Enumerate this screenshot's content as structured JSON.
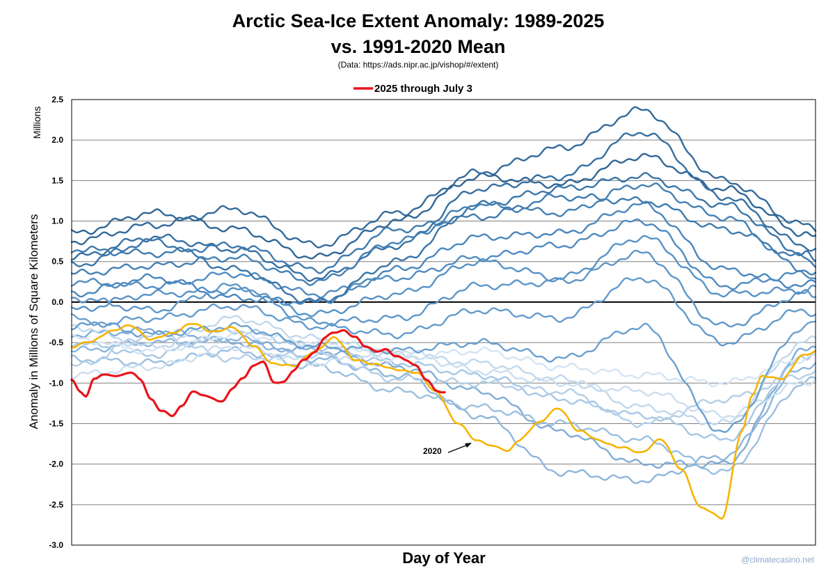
{
  "chart_data": {
    "type": "line",
    "title_line1": "Arctic Sea-Ice Extent Anomaly: 1989-2025",
    "title_line2": "vs. 1991-2020 Mean",
    "subtitle": "(Data: https://ads.nipr.ac.jp/vishop/#/extent)",
    "xlabel": "Day of Year",
    "ylabel": "Anomaly in Millions of Square Kilometers",
    "yunits": "Millions",
    "ylim": [
      -3.0,
      2.5
    ],
    "yticks": [
      2.5,
      2.0,
      1.5,
      1.0,
      0.5,
      0.0,
      -0.5,
      -1.0,
      -1.5,
      -2.0,
      -2.5,
      -3.0
    ],
    "ytick_labels": [
      "2.5",
      "2.0",
      "1.5",
      "1.0",
      "0.5",
      "0.0",
      "-0.5",
      "-1.0",
      "-1.5",
      "-2.0",
      "-2.5",
      "-3.0"
    ],
    "xlim": [
      1,
      366
    ],
    "grid": true,
    "legend": {
      "position": "top-center",
      "entries": [
        "2025 through July 3"
      ]
    },
    "annotations": [
      {
        "text": "2020",
        "x": 212,
        "y": -1.88
      }
    ],
    "highlight": [
      {
        "name": "2025 through July 3",
        "color": "#e8141b",
        "x": [
          1,
          5,
          8,
          12,
          16,
          20,
          25,
          30,
          35,
          40,
          45,
          50,
          55,
          60,
          65,
          70,
          75,
          80,
          85,
          90,
          95,
          100,
          105,
          110,
          115,
          120,
          125,
          130,
          135,
          140,
          145,
          150,
          155,
          160,
          165,
          170,
          175,
          180,
          184
        ],
        "y": [
          -0.95,
          -1.12,
          -1.17,
          -0.95,
          -0.88,
          -0.9,
          -0.92,
          -0.87,
          -0.95,
          -1.2,
          -1.35,
          -1.41,
          -1.28,
          -1.1,
          -1.15,
          -1.2,
          -1.22,
          -1.05,
          -0.95,
          -0.8,
          -0.72,
          -0.98,
          -1.0,
          -0.85,
          -0.7,
          -0.62,
          -0.45,
          -0.38,
          -0.35,
          -0.42,
          -0.55,
          -0.62,
          -0.58,
          -0.65,
          -0.72,
          -0.8,
          -0.95,
          -1.08,
          -1.12
        ]
      },
      {
        "name": "2020",
        "color": "#f5b400",
        "x": [
          1,
          10,
          20,
          30,
          40,
          50,
          60,
          70,
          80,
          90,
          100,
          110,
          120,
          130,
          140,
          150,
          160,
          170,
          180,
          190,
          200,
          210,
          215,
          220,
          230,
          240,
          250,
          260,
          270,
          280,
          290,
          300,
          310,
          320,
          330,
          335,
          340,
          350,
          360,
          366
        ],
        "y": [
          -0.55,
          -0.5,
          -0.35,
          -0.3,
          -0.45,
          -0.4,
          -0.25,
          -0.38,
          -0.3,
          -0.55,
          -0.75,
          -0.8,
          -0.6,
          -0.45,
          -0.7,
          -0.78,
          -0.82,
          -0.88,
          -1.1,
          -1.5,
          -1.7,
          -1.8,
          -1.85,
          -1.7,
          -1.5,
          -1.3,
          -1.6,
          -1.7,
          -1.8,
          -1.85,
          -1.7,
          -2.05,
          -2.55,
          -2.66,
          -1.6,
          -1.15,
          -0.9,
          -0.95,
          -0.65,
          -0.6
        ]
      }
    ],
    "series": [
      {
        "group": "dark",
        "color": "#2f6696",
        "x": [
          1,
          41,
          81,
          121,
          161,
          201,
          241,
          281,
          321,
          361,
          366
        ],
        "y": [
          0.85,
          1.1,
          0.9,
          0.55,
          1.0,
          1.55,
          1.45,
          1.8,
          1.4,
          0.85,
          0.8
        ]
      },
      {
        "group": "dark",
        "color": "#326a9b",
        "x": [
          1,
          41,
          81,
          121,
          161,
          201,
          241,
          281,
          321,
          361,
          366
        ],
        "y": [
          0.75,
          0.95,
          1.15,
          0.7,
          1.1,
          1.6,
          1.9,
          2.37,
          1.5,
          0.95,
          0.9
        ]
      },
      {
        "group": "dark",
        "color": "#3670a2",
        "x": [
          1,
          41,
          81,
          121,
          161,
          201,
          241,
          281,
          321,
          361,
          366
        ],
        "y": [
          0.55,
          0.8,
          0.65,
          0.3,
          0.7,
          1.4,
          1.55,
          2.1,
          1.3,
          0.7,
          0.65
        ]
      },
      {
        "group": "dark",
        "color": "#3a75a8",
        "x": [
          1,
          41,
          81,
          121,
          161,
          201,
          241,
          281,
          321,
          361,
          366
        ],
        "y": [
          0.45,
          0.75,
          0.4,
          0.0,
          0.5,
          1.2,
          1.4,
          1.55,
          1.2,
          0.6,
          0.5
        ]
      },
      {
        "group": "dark",
        "color": "#3e7aae",
        "x": [
          1,
          41,
          81,
          121,
          161,
          201,
          241,
          281,
          321,
          361,
          366
        ],
        "y": [
          0.65,
          0.6,
          0.7,
          0.4,
          0.9,
          1.05,
          1.3,
          1.25,
          0.9,
          0.55,
          0.45
        ]
      },
      {
        "group": "dark",
        "color": "#4380b4",
        "x": [
          1,
          41,
          81,
          121,
          161,
          201,
          241,
          281,
          321,
          361,
          366
        ],
        "y": [
          0.35,
          0.45,
          0.55,
          0.25,
          0.75,
          1.2,
          1.1,
          1.45,
          1.05,
          0.4,
          0.35
        ]
      },
      {
        "group": "mid",
        "color": "#4a86bc",
        "x": [
          1,
          41,
          81,
          121,
          161,
          201,
          241,
          281,
          321,
          361,
          366
        ],
        "y": [
          0.1,
          0.3,
          0.05,
          0.0,
          0.4,
          0.8,
          0.85,
          1.2,
          0.4,
          0.2,
          0.25
        ]
      },
      {
        "group": "mid",
        "color": "#508bc1",
        "x": [
          1,
          41,
          81,
          121,
          161,
          201,
          241,
          281,
          321,
          361,
          366
        ],
        "y": [
          0.25,
          0.2,
          0.35,
          0.1,
          0.3,
          0.55,
          0.7,
          1.0,
          0.2,
          0.35,
          0.3
        ]
      },
      {
        "group": "mid",
        "color": "#5792c6",
        "x": [
          1,
          41,
          81,
          121,
          161,
          201,
          241,
          281,
          321,
          361,
          366
        ],
        "y": [
          -0.1,
          0.1,
          0.15,
          -0.15,
          0.1,
          0.5,
          0.3,
          0.8,
          0.1,
          0.15,
          0.05
        ]
      },
      {
        "group": "mid",
        "color": "#5d96c9",
        "x": [
          1,
          41,
          81,
          121,
          161,
          201,
          241,
          281,
          321,
          361,
          366
        ],
        "y": [
          0.05,
          -0.1,
          0.2,
          -0.25,
          -0.2,
          0.2,
          0.25,
          0.6,
          -0.3,
          0.1,
          0.2
        ]
      },
      {
        "group": "mid",
        "color": "#639bcc",
        "x": [
          1,
          41,
          81,
          121,
          161,
          201,
          241,
          281,
          321,
          361,
          366
        ],
        "y": [
          -0.3,
          -0.2,
          -0.05,
          -0.3,
          -0.4,
          -0.1,
          -0.2,
          0.3,
          -0.5,
          -0.1,
          -0.15
        ]
      },
      {
        "group": "mid",
        "color": "#6aa0cf",
        "x": [
          1,
          41,
          81,
          121,
          161,
          201,
          241,
          281,
          321,
          361,
          366
        ],
        "y": [
          -0.2,
          -0.4,
          -0.3,
          -0.55,
          -0.6,
          -0.5,
          -0.7,
          -0.3,
          -1.6,
          -0.3,
          -0.25
        ]
      },
      {
        "group": "light",
        "color": "#80acd7",
        "x": [
          1,
          41,
          81,
          121,
          161,
          201,
          241,
          281,
          321,
          361,
          366
        ],
        "y": [
          -0.4,
          -0.35,
          -0.5,
          -0.6,
          -0.8,
          -1.1,
          -1.6,
          -2.0,
          -2.0,
          -0.6,
          -0.55
        ]
      },
      {
        "group": "light",
        "color": "#8db5db",
        "x": [
          1,
          41,
          81,
          121,
          161,
          201,
          241,
          281,
          321,
          361,
          366
        ],
        "y": [
          -0.6,
          -0.5,
          -0.45,
          -0.7,
          -0.9,
          -1.4,
          -2.1,
          -2.2,
          -1.9,
          -0.8,
          -0.75
        ]
      },
      {
        "group": "light",
        "color": "#9bbfe0",
        "x": [
          1,
          41,
          81,
          121,
          161,
          201,
          241,
          281,
          321,
          361,
          366
        ],
        "y": [
          -0.7,
          -0.75,
          -0.6,
          -0.8,
          -1.1,
          -1.3,
          -1.5,
          -1.7,
          -2.1,
          -1.0,
          -0.95
        ]
      },
      {
        "group": "light",
        "color": "#a7c7e5",
        "x": [
          1,
          41,
          81,
          121,
          161,
          201,
          241,
          281,
          321,
          361,
          366
        ],
        "y": [
          -0.5,
          -0.65,
          -0.35,
          -0.55,
          -0.75,
          -0.9,
          -1.2,
          -1.4,
          -1.7,
          -0.7,
          -0.6
        ]
      },
      {
        "group": "light",
        "color": "#b3cfe9",
        "x": [
          1,
          41,
          81,
          121,
          161,
          201,
          241,
          281,
          321,
          361,
          366
        ],
        "y": [
          -0.8,
          -0.4,
          -0.7,
          -0.65,
          -0.95,
          -1.0,
          -1.1,
          -1.5,
          -1.2,
          -0.9,
          -0.85
        ]
      },
      {
        "group": "light",
        "color": "#c0d7ec",
        "x": [
          1,
          41,
          81,
          121,
          161,
          201,
          241,
          281,
          321,
          361,
          366
        ],
        "y": [
          -0.3,
          -0.55,
          -0.2,
          -0.45,
          -0.65,
          -0.75,
          -0.95,
          -1.3,
          -1.5,
          -0.5,
          -0.45
        ]
      },
      {
        "group": "light",
        "color": "#cbdef0",
        "x": [
          1,
          41,
          81,
          121,
          161,
          201,
          241,
          281,
          321,
          361,
          366
        ],
        "y": [
          -0.9,
          -0.8,
          -0.55,
          -0.75,
          -0.6,
          -0.85,
          -1.0,
          -1.1,
          -1.4,
          -1.0,
          -0.95
        ]
      },
      {
        "group": "light",
        "color": "#d4e4f3",
        "x": [
          1,
          41,
          81,
          121,
          161,
          201,
          241,
          281,
          321,
          361,
          366
        ],
        "y": [
          -0.45,
          -0.6,
          -0.4,
          -0.5,
          -0.7,
          -0.6,
          -0.8,
          -0.9,
          -1.0,
          -0.7,
          -0.65
        ]
      }
    ]
  },
  "footer": {
    "credit": "@climatecasino.net"
  },
  "colors": {
    "zero_line": "#000000",
    "grid": "#7f7f7f",
    "frame": "#000000"
  }
}
